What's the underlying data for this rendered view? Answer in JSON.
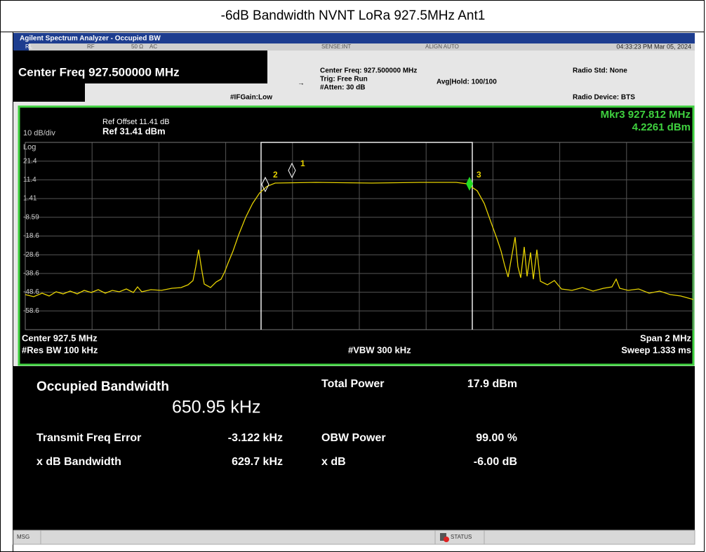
{
  "title": "-6dB Bandwidth NVNT LoRa 927.5MHz Ant1",
  "window_title": "Agilent Spectrum Analyzer - Occupied BW",
  "status_bar": {
    "rl": "RL",
    "rf": "RF",
    "impedance": "50 Ω",
    "coupling": "AC",
    "sense": "SENSE:INT",
    "align": "ALIGN AUTO",
    "datetime": "04:33:23 PM Mar 05, 2024"
  },
  "settings": {
    "center_freq_big": "Center Freq 927.500000 MHz",
    "ifgain": "#IFGain:Low",
    "center_freq": "Center Freq: 927.500000 MHz",
    "trig": "Trig: Free Run",
    "atten": "#Atten: 30 dB",
    "avg_hold": "Avg|Hold: 100/100",
    "radio_std": "Radio Std: None",
    "radio_device": "Radio Device: BTS"
  },
  "plot": {
    "ref_offset": "Ref Offset 11.41 dB",
    "ref": "Ref 31.41 dBm",
    "scale": "10 dB/div",
    "scale_type": "Log",
    "marker_freq": "Mkr3  927.812 MHz",
    "marker_level": "4.2261 dBm",
    "yticks": [
      "21.4",
      "11.4",
      "1.41",
      "-8.59",
      "-18.6",
      "-28.6",
      "-38.6",
      "-48.6",
      "-58.6"
    ],
    "markers": [
      "1",
      "2",
      "3"
    ],
    "center": "Center  927.5 MHz",
    "res_bw": "#Res BW  100 kHz",
    "vbw": "#VBW  300 kHz",
    "span": "Span 2 MHz",
    "sweep": "Sweep  1.333 ms"
  },
  "results": {
    "obw_label": "Occupied Bandwidth",
    "obw_value": "650.95 kHz",
    "total_power_label": "Total Power",
    "total_power": "17.9 dBm",
    "freq_error_label": "Transmit Freq Error",
    "freq_error": "-3.122 kHz",
    "obw_power_label": "OBW Power",
    "obw_power": "99.00 %",
    "xdb_bw_label": "x dB Bandwidth",
    "xdb_bw": "629.7 kHz",
    "xdb_label": "x dB",
    "xdb": "-6.00 dB"
  },
  "footer": {
    "msg": "MSG",
    "status": "STATUS"
  }
}
